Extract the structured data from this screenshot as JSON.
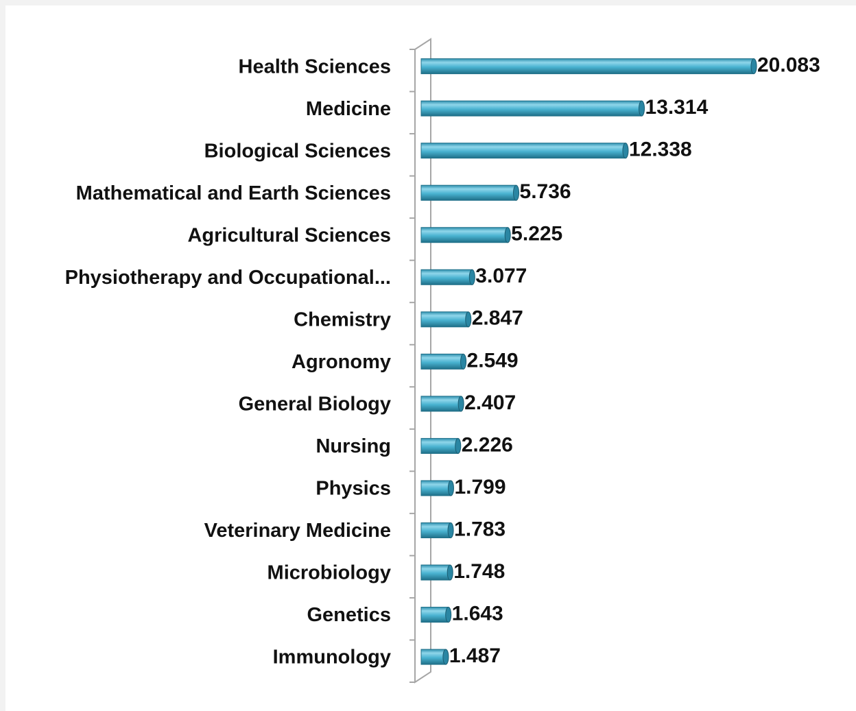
{
  "chart_data": {
    "type": "bar",
    "orientation": "horizontal",
    "categories": [
      "Health Sciences",
      "Medicine",
      "Biological Sciences",
      "Mathematical and Earth Sciences",
      "Agricultural Sciences",
      "Physiotherapy and Occupational...",
      "Chemistry",
      "Agronomy",
      "General Biology",
      "Nursing",
      "Physics",
      "Veterinary Medicine",
      "Microbiology",
      "Genetics",
      "Immunology"
    ],
    "values": [
      20.083,
      13.314,
      12.338,
      5.736,
      5.225,
      3.077,
      2.847,
      2.549,
      2.407,
      2.226,
      1.799,
      1.783,
      1.748,
      1.643,
      1.487
    ],
    "color": "#4ab3d1"
  }
}
